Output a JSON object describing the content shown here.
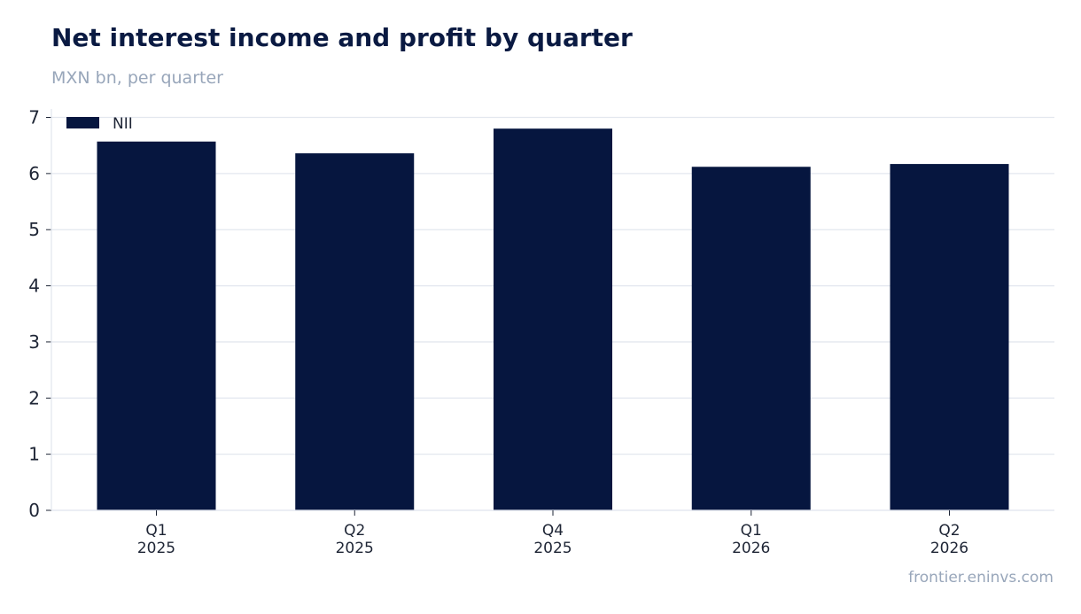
{
  "title": "Net interest income and profit by quarter",
  "subtitle": "MXN bn, per quarter",
  "source": "frontier.eninvs.com",
  "chart_data": {
    "type": "bar",
    "categories": [
      [
        "Q1",
        "2025"
      ],
      [
        "Q2",
        "2025"
      ],
      [
        "Q4",
        "2025"
      ],
      [
        "Q1",
        "2026"
      ],
      [
        "Q2",
        "2026"
      ]
    ],
    "series": [
      {
        "name": "NII",
        "color": "#06163f",
        "values": [
          6.57,
          6.36,
          6.8,
          6.12,
          6.17
        ]
      }
    ],
    "yticks": [
      0,
      1,
      2,
      3,
      4,
      5,
      6,
      7
    ],
    "ylim": [
      0,
      7.15
    ],
    "grid": true,
    "legend": "top-left"
  }
}
